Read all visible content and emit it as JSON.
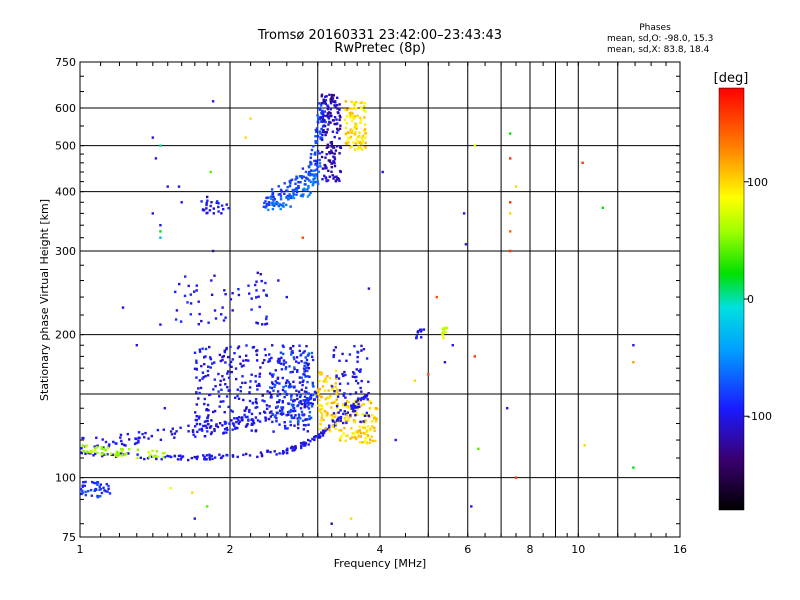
{
  "chart_data": {
    "type": "scatter",
    "title": "Tromsø 20160331 23:42:00–23:43:43",
    "subtitle": "RwPretec (8p)",
    "xlabel": "Frequency [MHz]",
    "ylabel": "Stationary phase Virtual Height [km]",
    "x_scale": "log",
    "y_scale": "log",
    "xlim": [
      1,
      16
    ],
    "ylim": [
      75,
      750
    ],
    "x_ticks": [
      1,
      2,
      4,
      6,
      8,
      10,
      16
    ],
    "x_tick_labels": [
      "1",
      "2",
      "4",
      "6",
      "8",
      "10",
      "16"
    ],
    "x_minor_gridlines": [
      3,
      5,
      7,
      9,
      12
    ],
    "y_ticks": [
      75,
      100,
      200,
      300,
      400,
      500,
      600,
      750
    ],
    "y_tick_labels": [
      "75",
      "100",
      "200",
      "300",
      "400",
      "500",
      "600",
      "750"
    ],
    "y_minor_gridlines": [
      150
    ],
    "grid": true,
    "stats": {
      "heading": "Phases",
      "line1": "mean, sd,O:  -98.0, 15.3",
      "line2": "mean, sd,X:  83.8, 18.4"
    },
    "colorbar": {
      "label": "[deg]",
      "ticks": [
        100,
        0,
        -100
      ],
      "tick_labels": [
        "100",
        "0",
        "-100"
      ],
      "range": [
        -180,
        180
      ],
      "colormap": "rainbow"
    },
    "clusters": [
      {
        "type": "curve",
        "points": [
          [
            1.0,
            113
          ],
          [
            1.15,
            112
          ],
          [
            1.4,
            110
          ],
          [
            1.7,
            110
          ],
          [
            2.0,
            111
          ],
          [
            2.3,
            112
          ],
          [
            2.6,
            114
          ],
          [
            2.8,
            117
          ],
          [
            3.0,
            122
          ],
          [
            3.2,
            128
          ],
          [
            3.4,
            136
          ],
          [
            3.6,
            143
          ],
          [
            3.8,
            150
          ]
        ],
        "phase": -100,
        "n": 190,
        "jitter": 0.012
      },
      {
        "type": "curve",
        "points": [
          [
            1.0,
            118
          ],
          [
            1.2,
            120
          ],
          [
            1.4,
            122
          ],
          [
            1.6,
            125
          ],
          [
            1.8,
            126
          ],
          [
            2.0,
            128
          ],
          [
            2.2,
            132
          ],
          [
            2.5,
            137
          ],
          [
            2.8,
            143
          ],
          [
            3.0,
            149
          ]
        ],
        "phase": -100,
        "n": 150,
        "jitter": 0.03
      },
      {
        "type": "blob",
        "x": [
          1.7,
          2.9
        ],
        "y": [
          125,
          190
        ],
        "phase": -100,
        "n": 330
      },
      {
        "type": "blob",
        "x": [
          2.4,
          2.95
        ],
        "y": [
          130,
          185
        ],
        "phase": -80,
        "n": 110
      },
      {
        "type": "blob",
        "x": [
          1.55,
          2.4
        ],
        "y": [
          210,
          270
        ],
        "phase": -100,
        "n": 60
      },
      {
        "type": "blob",
        "x": [
          1.0,
          1.15
        ],
        "y": [
          91,
          98
        ],
        "phase": -85,
        "n": 40
      },
      {
        "type": "curve",
        "points": [
          [
            1.0,
            116
          ],
          [
            1.1,
            114
          ],
          [
            1.2,
            113
          ],
          [
            1.35,
            112
          ],
          [
            1.5,
            112
          ]
        ],
        "phase": 60,
        "n": 50,
        "jitter": 0.02
      },
      {
        "type": "blob",
        "x": [
          3.0,
          3.3
        ],
        "y": [
          125,
          168
        ],
        "phase": 100,
        "n": 80
      },
      {
        "type": "blob",
        "x": [
          3.3,
          3.95
        ],
        "y": [
          118,
          145
        ],
        "phase": 100,
        "n": 110
      },
      {
        "type": "blob",
        "x": [
          3.2,
          3.8
        ],
        "y": [
          130,
          190
        ],
        "phase": -100,
        "n": 80
      },
      {
        "type": "curve",
        "points": [
          [
            2.35,
            380
          ],
          [
            2.5,
            395
          ],
          [
            2.7,
            410
          ],
          [
            2.85,
            430
          ],
          [
            2.95,
            460
          ],
          [
            3.0,
            500
          ],
          [
            3.05,
            560
          ],
          [
            3.1,
            620
          ]
        ],
        "phase": -80,
        "n": 160,
        "jitter": 0.04
      },
      {
        "type": "curve",
        "points": [
          [
            2.4,
            375
          ],
          [
            2.6,
            380
          ],
          [
            2.8,
            395
          ],
          [
            2.95,
            420
          ],
          [
            3.0,
            450
          ]
        ],
        "phase": -60,
        "n": 60,
        "jitter": 0.03
      },
      {
        "type": "blob",
        "x": [
          3.05,
          3.35
        ],
        "y": [
          420,
          640
        ],
        "phase": -115,
        "n": 150
      },
      {
        "type": "blob",
        "x": [
          3.4,
          3.75
        ],
        "y": [
          490,
          620
        ],
        "phase": 100,
        "n": 100
      },
      {
        "type": "blob",
        "x": [
          1.75,
          2.0
        ],
        "y": [
          360,
          385
        ],
        "phase": -100,
        "n": 25
      },
      {
        "type": "blob",
        "x": [
          5.3,
          5.45
        ],
        "y": [
          195,
          208
        ],
        "phase": 70,
        "n": 14
      },
      {
        "type": "blob",
        "x": [
          4.7,
          4.85
        ],
        "y": [
          196,
          205
        ],
        "phase": -100,
        "n": 10
      }
    ],
    "scattered_points": [
      [
        1.12,
        94,
        -100
      ],
      [
        1.22,
        228,
        -100
      ],
      [
        1.3,
        190,
        -100
      ],
      [
        1.4,
        520,
        -100
      ],
      [
        1.42,
        470,
        -100
      ],
      [
        1.45,
        500,
        0
      ],
      [
        1.45,
        340,
        -100
      ],
      [
        1.45,
        330,
        20
      ],
      [
        1.45,
        320,
        -30
      ],
      [
        1.4,
        360,
        -100
      ],
      [
        1.5,
        410,
        -100
      ],
      [
        1.58,
        410,
        -100
      ],
      [
        1.45,
        210,
        -100
      ],
      [
        1.48,
        140,
        -100
      ],
      [
        1.52,
        95,
        80
      ],
      [
        1.6,
        380,
        -100
      ],
      [
        1.68,
        93,
        100
      ],
      [
        1.7,
        82,
        -100
      ],
      [
        1.8,
        87,
        40
      ],
      [
        1.8,
        390,
        -120
      ],
      [
        1.83,
        440,
        40
      ],
      [
        1.85,
        620,
        -100
      ],
      [
        1.85,
        300,
        -120
      ],
      [
        2.15,
        520,
        100
      ],
      [
        2.2,
        570,
        100
      ],
      [
        2.5,
        260,
        -100
      ],
      [
        2.6,
        240,
        -100
      ],
      [
        2.8,
        320,
        150
      ],
      [
        3.2,
        80,
        -120
      ],
      [
        3.5,
        82,
        100
      ],
      [
        3.8,
        250,
        -100
      ],
      [
        4.05,
        440,
        -100
      ],
      [
        4.3,
        120,
        -100
      ],
      [
        4.7,
        160,
        100
      ],
      [
        4.9,
        205,
        -100
      ],
      [
        5.0,
        165,
        150
      ],
      [
        5.2,
        240,
        150
      ],
      [
        5.4,
        175,
        -100
      ],
      [
        5.6,
        190,
        -100
      ],
      [
        5.9,
        360,
        -100
      ],
      [
        5.95,
        310,
        -100
      ],
      [
        6.1,
        87,
        -100
      ],
      [
        6.2,
        500,
        80
      ],
      [
        6.2,
        180,
        160
      ],
      [
        6.3,
        115,
        40
      ],
      [
        7.2,
        140,
        -100
      ],
      [
        7.3,
        530,
        20
      ],
      [
        7.3,
        470,
        160
      ],
      [
        7.3,
        380,
        160
      ],
      [
        7.3,
        360,
        100
      ],
      [
        7.3,
        330,
        140
      ],
      [
        7.3,
        300,
        160
      ],
      [
        7.5,
        410,
        100
      ],
      [
        7.5,
        100,
        160
      ],
      [
        10.2,
        460,
        160
      ],
      [
        10.3,
        117,
        100
      ],
      [
        11.2,
        370,
        20
      ],
      [
        12.9,
        190,
        -100
      ],
      [
        12.9,
        175,
        120
      ],
      [
        12.9,
        105,
        20
      ]
    ]
  }
}
